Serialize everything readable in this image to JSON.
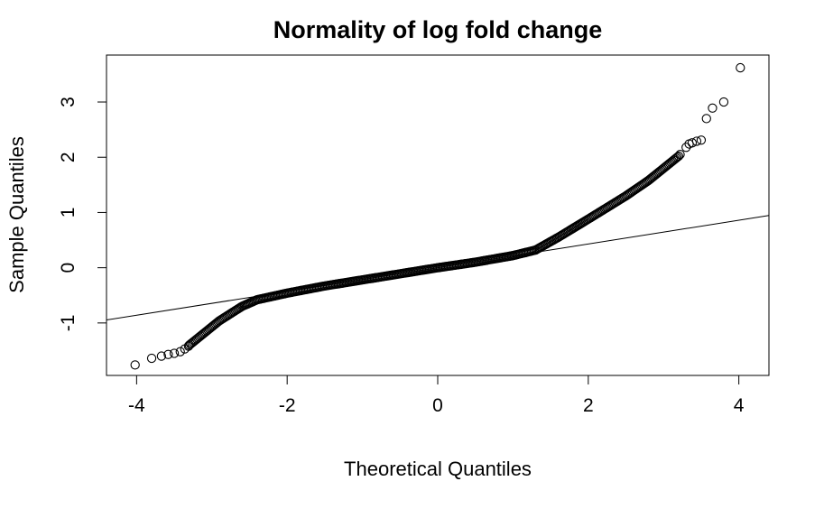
{
  "chart_data": {
    "type": "scatter",
    "title": "Normality of log fold change",
    "xlabel": "Theoretical Quantiles",
    "ylabel": "Sample Quantiles",
    "xlim": [
      -4.4,
      4.4
    ],
    "ylim": [
      -1.95,
      3.85
    ],
    "xticks": [
      -4,
      -2,
      0,
      2,
      4
    ],
    "yticks": [
      -1,
      0,
      1,
      2,
      3
    ],
    "grid": false,
    "legend": "none",
    "reference_line": {
      "intercept": 0.0,
      "slope": 0.215
    },
    "outlier_points": [
      {
        "x": -4.02,
        "y": -1.76
      },
      {
        "x": -3.8,
        "y": -1.64
      },
      {
        "x": -3.67,
        "y": -1.6
      },
      {
        "x": -3.58,
        "y": -1.57
      },
      {
        "x": -3.5,
        "y": -1.55
      },
      {
        "x": -3.42,
        "y": -1.52
      },
      {
        "x": -3.36,
        "y": -1.47
      },
      {
        "x": -3.31,
        "y": -1.42
      },
      {
        "x": 3.22,
        "y": 2.05
      },
      {
        "x": 3.3,
        "y": 2.18
      },
      {
        "x": 3.34,
        "y": 2.24
      },
      {
        "x": 3.38,
        "y": 2.26
      },
      {
        "x": 3.44,
        "y": 2.29
      },
      {
        "x": 3.5,
        "y": 2.31
      },
      {
        "x": 3.57,
        "y": 2.7
      },
      {
        "x": 3.65,
        "y": 2.89
      },
      {
        "x": 3.8,
        "y": 3.0
      },
      {
        "x": 4.02,
        "y": 3.62
      }
    ],
    "sample_curve_knots": [
      {
        "x": -3.3,
        "y": -1.4
      },
      {
        "x": -3.1,
        "y": -1.18
      },
      {
        "x": -2.9,
        "y": -0.96
      },
      {
        "x": -2.6,
        "y": -0.7
      },
      {
        "x": -2.4,
        "y": -0.58
      },
      {
        "x": -2.0,
        "y": -0.46
      },
      {
        "x": -1.5,
        "y": -0.33
      },
      {
        "x": -1.0,
        "y": -0.22
      },
      {
        "x": -0.5,
        "y": -0.11
      },
      {
        "x": 0.0,
        "y": 0.0
      },
      {
        "x": 0.5,
        "y": 0.1
      },
      {
        "x": 1.0,
        "y": 0.22
      },
      {
        "x": 1.3,
        "y": 0.32
      },
      {
        "x": 1.6,
        "y": 0.55
      },
      {
        "x": 2.0,
        "y": 0.88
      },
      {
        "x": 2.5,
        "y": 1.3
      },
      {
        "x": 2.8,
        "y": 1.58
      },
      {
        "x": 3.0,
        "y": 1.8
      },
      {
        "x": 3.2,
        "y": 2.02
      }
    ]
  }
}
